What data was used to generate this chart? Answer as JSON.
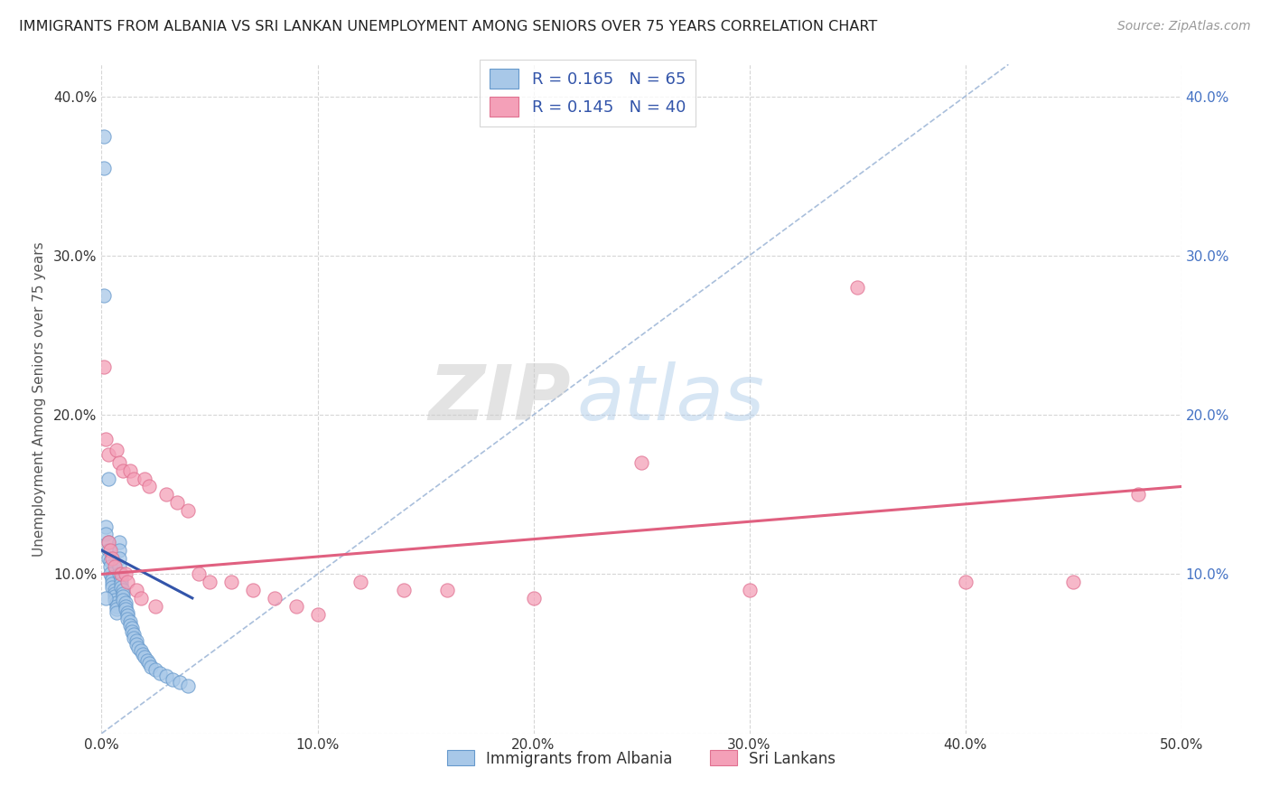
{
  "title": "IMMIGRANTS FROM ALBANIA VS SRI LANKAN UNEMPLOYMENT AMONG SENIORS OVER 75 YEARS CORRELATION CHART",
  "source": "Source: ZipAtlas.com",
  "ylabel": "Unemployment Among Seniors over 75 years",
  "xlim": [
    0.0,
    0.5
  ],
  "ylim": [
    0.0,
    0.42
  ],
  "legend_r1": "R = 0.165",
  "legend_n1": "N = 65",
  "legend_r2": "R = 0.145",
  "legend_n2": "N = 40",
  "color_albania": "#A8C8E8",
  "color_albania_edge": "#6699CC",
  "color_srilanka": "#F4A0B8",
  "color_srilanka_edge": "#E07090",
  "color_line_albania": "#3355AA",
  "color_line_srilanka": "#E06080",
  "color_diag": "#A0B8D8",
  "background_color": "#FFFFFF",
  "grid_color": "#CCCCCC",
  "tick_color_right": "#4472C4",
  "watermark_zip": "ZIP",
  "watermark_atlas": "atlas",
  "albania_x": [
    0.001,
    0.001,
    0.001,
    0.002,
    0.002,
    0.003,
    0.003,
    0.003,
    0.004,
    0.004,
    0.004,
    0.005,
    0.005,
    0.005,
    0.005,
    0.006,
    0.006,
    0.006,
    0.006,
    0.007,
    0.007,
    0.007,
    0.007,
    0.008,
    0.008,
    0.008,
    0.008,
    0.008,
    0.009,
    0.009,
    0.009,
    0.009,
    0.01,
    0.01,
    0.01,
    0.01,
    0.011,
    0.011,
    0.011,
    0.012,
    0.012,
    0.012,
    0.013,
    0.013,
    0.014,
    0.014,
    0.015,
    0.015,
    0.016,
    0.016,
    0.017,
    0.018,
    0.019,
    0.02,
    0.021,
    0.022,
    0.023,
    0.025,
    0.027,
    0.03,
    0.033,
    0.036,
    0.04,
    0.002,
    0.003
  ],
  "albania_y": [
    0.375,
    0.355,
    0.275,
    0.13,
    0.125,
    0.12,
    0.115,
    0.11,
    0.108,
    0.105,
    0.1,
    0.098,
    0.096,
    0.094,
    0.092,
    0.09,
    0.088,
    0.086,
    0.084,
    0.082,
    0.08,
    0.078,
    0.076,
    0.12,
    0.115,
    0.11,
    0.105,
    0.1,
    0.098,
    0.096,
    0.094,
    0.092,
    0.09,
    0.088,
    0.086,
    0.084,
    0.082,
    0.08,
    0.078,
    0.076,
    0.074,
    0.072,
    0.07,
    0.068,
    0.066,
    0.064,
    0.062,
    0.06,
    0.058,
    0.056,
    0.054,
    0.052,
    0.05,
    0.048,
    0.046,
    0.044,
    0.042,
    0.04,
    0.038,
    0.036,
    0.034,
    0.032,
    0.03,
    0.085,
    0.16
  ],
  "srilanka_x": [
    0.001,
    0.002,
    0.003,
    0.003,
    0.004,
    0.005,
    0.006,
    0.007,
    0.008,
    0.009,
    0.01,
    0.011,
    0.012,
    0.013,
    0.015,
    0.016,
    0.018,
    0.02,
    0.022,
    0.025,
    0.03,
    0.035,
    0.04,
    0.045,
    0.05,
    0.06,
    0.07,
    0.08,
    0.09,
    0.1,
    0.12,
    0.14,
    0.16,
    0.2,
    0.25,
    0.3,
    0.35,
    0.4,
    0.45,
    0.48
  ],
  "srilanka_y": [
    0.23,
    0.185,
    0.175,
    0.12,
    0.115,
    0.11,
    0.105,
    0.178,
    0.17,
    0.1,
    0.165,
    0.1,
    0.095,
    0.165,
    0.16,
    0.09,
    0.085,
    0.16,
    0.155,
    0.08,
    0.15,
    0.145,
    0.14,
    0.1,
    0.095,
    0.095,
    0.09,
    0.085,
    0.08,
    0.075,
    0.095,
    0.09,
    0.09,
    0.085,
    0.17,
    0.09,
    0.28,
    0.095,
    0.095,
    0.15
  ],
  "albania_trend_x": [
    0.0,
    0.042
  ],
  "albania_trend_y": [
    0.115,
    0.085
  ],
  "srilanka_trend_x": [
    0.0,
    0.5
  ],
  "srilanka_trend_y": [
    0.1,
    0.155
  ]
}
